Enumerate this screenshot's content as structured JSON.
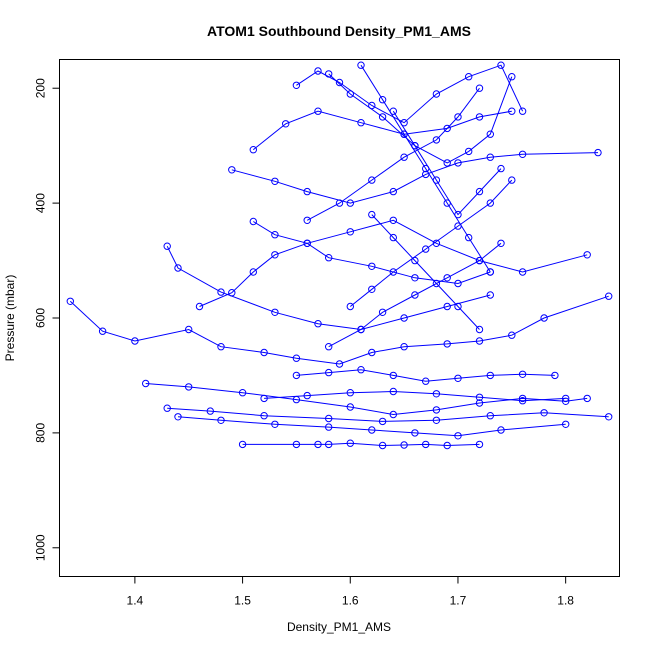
{
  "chart_data": {
    "type": "line",
    "title": "ATOM1 Southbound Density_PM1_AMS",
    "xlabel": "Density_PM1_AMS",
    "ylabel": "Pressure (mbar)",
    "xlim": [
      1.33,
      1.85
    ],
    "ylim": [
      1050,
      150
    ],
    "y_reversed": true,
    "xticks": [
      1.4,
      1.5,
      1.6,
      1.7,
      1.8
    ],
    "xtick_labels": [
      "1.4",
      "1.5",
      "1.6",
      "1.7",
      "1.8"
    ],
    "yticks": [
      200,
      400,
      600,
      800,
      1000
    ],
    "ytick_labels": [
      "200",
      "400",
      "600",
      "800",
      "1000"
    ],
    "grid": false,
    "series_color": "#0000ff",
    "marker": "open-circle",
    "series": [
      {
        "x": [
          1.5,
          1.55,
          1.57,
          1.58,
          1.6,
          1.63,
          1.65,
          1.67,
          1.69,
          1.72
        ],
        "y": [
          820,
          820,
          820,
          820,
          818,
          822,
          821,
          820,
          822,
          820
        ]
      },
      {
        "x": [
          1.34,
          1.37,
          1.4,
          1.45,
          1.48,
          1.52,
          1.55,
          1.59,
          1.62,
          1.65,
          1.69,
          1.72,
          1.75,
          1.78,
          1.84
        ],
        "y": [
          571,
          623,
          640,
          620,
          650,
          660,
          670,
          680,
          660,
          650,
          645,
          640,
          630,
          600,
          562
        ]
      },
      {
        "x": [
          1.41,
          1.45,
          1.5,
          1.55,
          1.6,
          1.64,
          1.68,
          1.72,
          1.76,
          1.8,
          1.82
        ],
        "y": [
          714,
          720,
          730,
          742,
          755,
          768,
          760,
          748,
          740,
          745,
          740
        ]
      },
      {
        "x": [
          1.43,
          1.47,
          1.52,
          1.58,
          1.63,
          1.68,
          1.73,
          1.78,
          1.84
        ],
        "y": [
          757,
          762,
          770,
          775,
          780,
          778,
          770,
          765,
          772
        ]
      },
      {
        "x": [
          1.44,
          1.48,
          1.53,
          1.58,
          1.62,
          1.66,
          1.7,
          1.74,
          1.8
        ],
        "y": [
          772,
          778,
          785,
          790,
          795,
          800,
          805,
          795,
          785
        ]
      },
      {
        "x": [
          1.43,
          1.44,
          1.48,
          1.53,
          1.57,
          1.61,
          1.65,
          1.69,
          1.73
        ],
        "y": [
          475,
          513,
          555,
          590,
          610,
          620,
          600,
          580,
          560
        ]
      },
      {
        "x": [
          1.46,
          1.49,
          1.51,
          1.53,
          1.56,
          1.6,
          1.64,
          1.68,
          1.72,
          1.76,
          1.82
        ],
        "y": [
          580,
          556,
          520,
          490,
          470,
          450,
          430,
          470,
          500,
          520,
          490
        ]
      },
      {
        "x": [
          1.49,
          1.53,
          1.56,
          1.6,
          1.64,
          1.67,
          1.7,
          1.73,
          1.76,
          1.83
        ],
        "y": [
          342,
          362,
          380,
          400,
          380,
          350,
          330,
          320,
          315,
          312
        ]
      },
      {
        "x": [
          1.51,
          1.54,
          1.57,
          1.61,
          1.65,
          1.69,
          1.72,
          1.75
        ],
        "y": [
          307,
          262,
          240,
          260,
          280,
          270,
          250,
          240
        ]
      },
      {
        "x": [
          1.51,
          1.53,
          1.56,
          1.58,
          1.62,
          1.66,
          1.7,
          1.73
        ],
        "y": [
          432,
          455,
          470,
          495,
          510,
          530,
          540,
          520
        ]
      },
      {
        "x": [
          1.55,
          1.57,
          1.59,
          1.62,
          1.65,
          1.68,
          1.71,
          1.74,
          1.76
        ],
        "y": [
          195,
          170,
          190,
          230,
          260,
          210,
          180,
          160,
          240
        ]
      },
      {
        "x": [
          1.58,
          1.6,
          1.63,
          1.66,
          1.69,
          1.71,
          1.73,
          1.75
        ],
        "y": [
          175,
          210,
          250,
          300,
          330,
          310,
          280,
          180
        ]
      },
      {
        "x": [
          1.56,
          1.59,
          1.62,
          1.65,
          1.68,
          1.7,
          1.72
        ],
        "y": [
          430,
          400,
          360,
          320,
          290,
          250,
          200
        ]
      },
      {
        "x": [
          1.6,
          1.62,
          1.64,
          1.67,
          1.7,
          1.73,
          1.75
        ],
        "y": [
          580,
          550,
          520,
          480,
          440,
          400,
          360
        ]
      },
      {
        "x": [
          1.58,
          1.61,
          1.63,
          1.66,
          1.69,
          1.72,
          1.74
        ],
        "y": [
          650,
          620,
          590,
          560,
          530,
          500,
          470
        ]
      },
      {
        "x": [
          1.55,
          1.58,
          1.61,
          1.64,
          1.67,
          1.7,
          1.73,
          1.76,
          1.79
        ],
        "y": [
          700,
          695,
          690,
          700,
          710,
          705,
          700,
          698,
          700
        ]
      },
      {
        "x": [
          1.52,
          1.56,
          1.6,
          1.64,
          1.68,
          1.72,
          1.76,
          1.8
        ],
        "y": [
          740,
          735,
          730,
          728,
          732,
          738,
          744,
          740
        ]
      },
      {
        "x": [
          1.62,
          1.64,
          1.66,
          1.68,
          1.7,
          1.72
        ],
        "y": [
          420,
          460,
          500,
          540,
          580,
          620
        ]
      },
      {
        "x": [
          1.64,
          1.66,
          1.68,
          1.7,
          1.72,
          1.74
        ],
        "y": [
          240,
          300,
          360,
          420,
          380,
          340
        ]
      },
      {
        "x": [
          1.61,
          1.63,
          1.65,
          1.67,
          1.69,
          1.71,
          1.73
        ],
        "y": [
          160,
          220,
          280,
          340,
          400,
          460,
          520
        ]
      }
    ]
  }
}
